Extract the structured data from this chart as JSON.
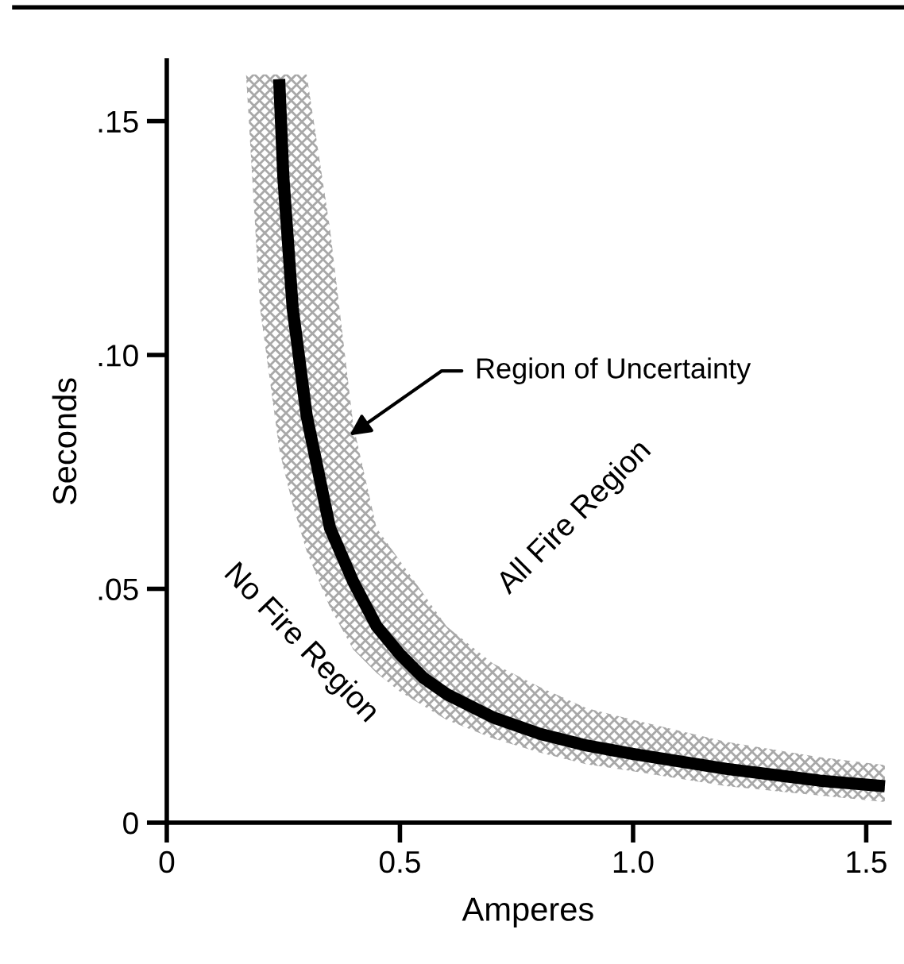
{
  "chart_data": {
    "type": "line",
    "xlabel": "Amperes",
    "ylabel": "Seconds",
    "xlim": [
      0,
      1.55
    ],
    "ylim": [
      0,
      0.163
    ],
    "xticks": [
      0,
      0.5,
      {
        "value": 1,
        "label": "1.0"
      },
      1.5
    ],
    "yticks": [
      0,
      {
        "value": 0.05,
        "label": ".05"
      },
      {
        "value": 0.1,
        "label": ".10"
      },
      {
        "value": 0.15,
        "label": ".15"
      }
    ],
    "x": [
      0.17,
      0.2,
      0.241,
      0.25,
      0.27,
      0.3,
      0.35,
      0.4,
      0.45,
      0.5,
      0.55,
      0.6,
      0.7,
      0.8,
      0.9,
      1.0,
      1.2,
      1.4,
      1.54
    ],
    "series": [
      {
        "color": "#000000",
        "values": [
          null,
          null,
          0.159,
          0.138,
          0.11,
          0.087,
          0.063,
          0.0515,
          0.042,
          0.036,
          0.031,
          0.0275,
          0.0225,
          0.019,
          0.0165,
          0.0147,
          0.0115,
          0.009,
          0.0078
        ],
        "lower": [
          0.16,
          0.11,
          0.08,
          0.076,
          0.068,
          0.058,
          0.046,
          0.037,
          0.032,
          0.028,
          0.025,
          0.022,
          0.018,
          0.015,
          0.0125,
          0.011,
          0.0078,
          0.0058,
          0.0044
        ],
        "upper": [
          0.16,
          0.16,
          0.16,
          0.16,
          0.16,
          0.16,
          0.127,
          0.085,
          0.063,
          0.056,
          0.049,
          0.042,
          0.034,
          0.029,
          0.0245,
          0.022,
          0.0173,
          0.014,
          0.0123
        ]
      }
    ],
    "marker": "none",
    "line_style": "solid",
    "annotations": [
      {
        "text": "Region of Uncertainty",
        "x": 0.392,
        "y": 0.0828
      },
      "All Fire Region",
      "No Fire Region"
    ]
  }
}
